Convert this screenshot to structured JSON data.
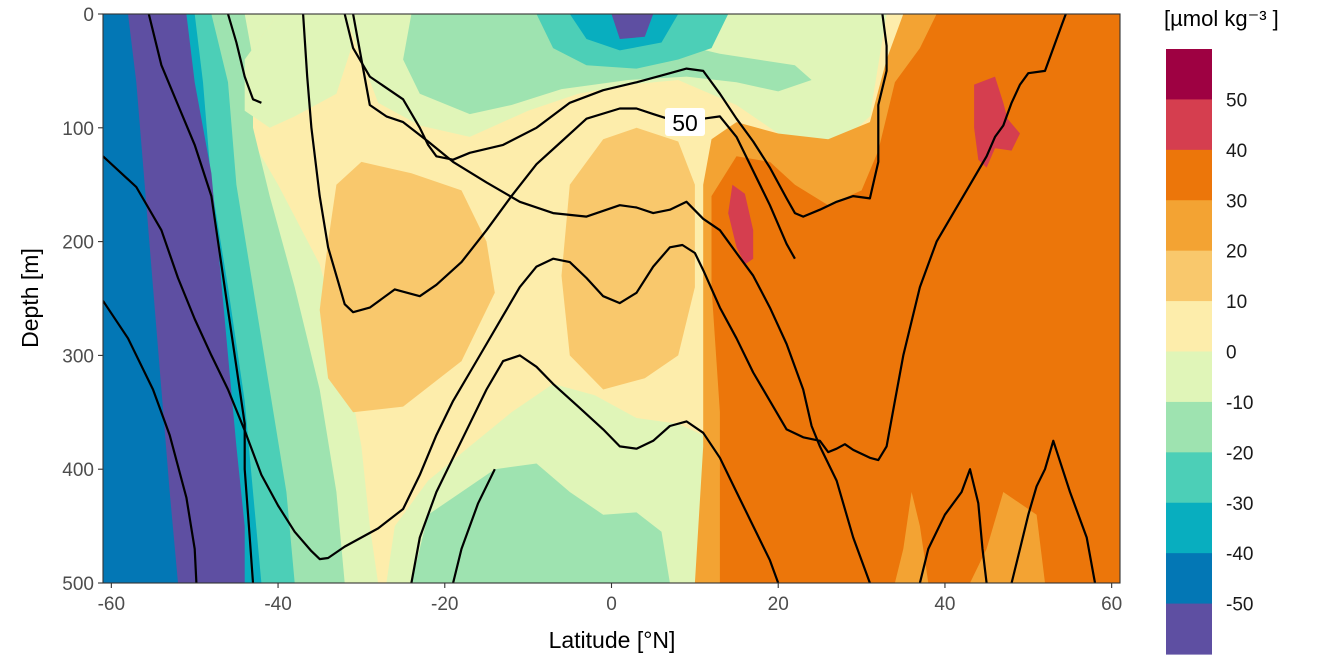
{
  "chart_data": {
    "type": "heatmap",
    "subtype": "filled-contour-section",
    "xlabel": "Latitude [°N]",
    "ylabel": "Depth [m]",
    "xlim": [
      -61,
      61
    ],
    "ylim": [
      0,
      500
    ],
    "y_reversed": true,
    "x_ticks": [
      -60,
      -40,
      -20,
      0,
      20,
      40,
      60
    ],
    "x_tick_labels": [
      "-60",
      "-40",
      "-20",
      "0",
      "20",
      "40",
      "60"
    ],
    "y_ticks": [
      0,
      100,
      200,
      300,
      400,
      500
    ],
    "y_tick_labels": [
      "0",
      "100",
      "200",
      "300",
      "400",
      "500"
    ],
    "legend": {
      "title": "[µmol kg⁻³ ]",
      "labels": [
        "50",
        "40",
        "30",
        "20",
        "10",
        "0",
        "-10",
        "-20",
        "-30",
        "-40",
        "-50"
      ],
      "colors_top_to_bottom": [
        "#9e0142",
        "#d53e4f",
        "#ec760a",
        "#f3a333",
        "#f9c86c",
        "#fdedab",
        "#e0f5b8",
        "#9ee3b0",
        "#4ccfb7",
        "#08aebf",
        "#0377b5",
        "#5e4fa2"
      ],
      "placement": "right"
    },
    "contour_line_label": "50",
    "bands": [
      {
        "name": "base",
        "color": "#fdedab"
      },
      {
        "name": "north-band-20-30",
        "color": "#f3a333"
      },
      {
        "name": "north-band-30-40",
        "color": "#ec760a"
      },
      {
        "name": "north-high-40-50",
        "color": "#d53e4f"
      },
      {
        "name": "equatorial-10-20",
        "color": "#f9c86c"
      },
      {
        "name": "upper-0-neg10",
        "color": "#e0f5b8"
      },
      {
        "name": "upper-neg10-neg20",
        "color": "#9ee3b0"
      },
      {
        "name": "deep-0-neg10",
        "color": "#e0f5b8"
      },
      {
        "name": "deep-neg10-neg20",
        "color": "#9ee3b0"
      },
      {
        "name": "south-neg10",
        "color": "#e0f5b8"
      },
      {
        "name": "south-neg20",
        "color": "#9ee3b0"
      },
      {
        "name": "south-neg30",
        "color": "#4ccfb7"
      },
      {
        "name": "south-neg40",
        "color": "#08aebf"
      },
      {
        "name": "south-neg50",
        "color": "#0377b5"
      },
      {
        "name": "south-min",
        "color": "#5e4fa2"
      }
    ],
    "contour_lines": [
      {
        "name": "isoline-1",
        "points": [
          [
            -61,
            125
          ],
          [
            -57,
            152
          ],
          [
            -54,
            190
          ],
          [
            -52,
            232
          ],
          [
            -50,
            268
          ],
          [
            -48,
            300
          ],
          [
            -46,
            330
          ],
          [
            -44,
            366
          ],
          [
            -42,
            405
          ],
          [
            -40,
            432
          ],
          [
            -38,
            455
          ],
          [
            -36,
            472
          ],
          [
            -35,
            479
          ],
          [
            -34,
            478
          ],
          [
            -32,
            468
          ],
          [
            -28,
            452
          ],
          [
            -25,
            435
          ],
          [
            -23,
            405
          ],
          [
            -21,
            370
          ],
          [
            -19,
            340
          ],
          [
            -17,
            315
          ],
          [
            -15,
            290
          ],
          [
            -13,
            265
          ],
          [
            -11,
            240
          ],
          [
            -9,
            222
          ],
          [
            -7,
            215
          ],
          [
            -5,
            218
          ],
          [
            -3,
            232
          ],
          [
            -1,
            248
          ],
          [
            1,
            254
          ],
          [
            3,
            245
          ],
          [
            5,
            222
          ],
          [
            7,
            205
          ],
          [
            8.5,
            203
          ],
          [
            10,
            210
          ],
          [
            11,
            225
          ],
          [
            13,
            258
          ],
          [
            15,
            285
          ],
          [
            17,
            315
          ],
          [
            19,
            340
          ],
          [
            21,
            365
          ],
          [
            23,
            372
          ],
          [
            25,
            375
          ],
          [
            26,
            385
          ],
          [
            27,
            382
          ],
          [
            28,
            378
          ],
          [
            29,
            383
          ],
          [
            31,
            390
          ],
          [
            32,
            392
          ],
          [
            33,
            380
          ],
          [
            34,
            340
          ],
          [
            35,
            300
          ],
          [
            36,
            270
          ],
          [
            37,
            240
          ],
          [
            39,
            200
          ],
          [
            41,
            175
          ],
          [
            43,
            150
          ],
          [
            45,
            125
          ],
          [
            46,
            108
          ],
          [
            47,
            98
          ],
          [
            48,
            78
          ],
          [
            49,
            62
          ],
          [
            50,
            52
          ],
          [
            52,
            50
          ],
          [
            53,
            30
          ],
          [
            54,
            10
          ],
          [
            54.5,
            0
          ]
        ]
      },
      {
        "name": "isoline-2",
        "points": [
          [
            -61,
            252
          ],
          [
            -58,
            285
          ],
          [
            -55,
            330
          ],
          [
            -53,
            370
          ],
          [
            -51,
            425
          ],
          [
            -50,
            470
          ],
          [
            -49.8,
            500
          ]
        ]
      },
      {
        "name": "isoline-3",
        "points": [
          [
            -55.5,
            0
          ],
          [
            -54,
            45
          ],
          [
            -52,
            80
          ],
          [
            -50,
            115
          ],
          [
            -48,
            160
          ],
          [
            -47,
            210
          ],
          [
            -46,
            260
          ],
          [
            -45,
            310
          ],
          [
            -44,
            360
          ],
          [
            -44,
            400
          ],
          [
            -43.5,
            450
          ],
          [
            -43,
            500
          ]
        ]
      },
      {
        "name": "isoline-4",
        "points": [
          [
            -46,
            0
          ],
          [
            -45,
            25
          ],
          [
            -44,
            55
          ],
          [
            -43,
            75
          ],
          [
            -42,
            78
          ]
        ]
      },
      {
        "name": "isoline-5",
        "points": [
          [
            -32,
            0
          ],
          [
            -31,
            30
          ],
          [
            -29,
            55
          ],
          [
            -25,
            75
          ],
          [
            -23,
            100
          ],
          [
            -22,
            115
          ],
          [
            -21,
            125
          ],
          [
            -19,
            128
          ],
          [
            -17,
            122
          ],
          [
            -13,
            115
          ],
          [
            -9,
            100
          ],
          [
            -5,
            78
          ],
          [
            -1,
            67
          ],
          [
            3,
            60
          ],
          [
            7,
            52
          ],
          [
            9,
            48
          ],
          [
            11,
            50
          ],
          [
            13,
            70
          ],
          [
            15,
            92
          ],
          [
            17,
            112
          ],
          [
            19,
            135
          ],
          [
            21,
            162
          ],
          [
            22,
            175
          ],
          [
            23,
            178
          ],
          [
            25,
            172
          ],
          [
            27,
            165
          ],
          [
            29,
            160
          ],
          [
            31,
            162
          ],
          [
            32,
            130
          ],
          [
            32,
            80
          ],
          [
            33,
            50
          ],
          [
            33,
            28
          ],
          [
            32.5,
            0
          ]
        ]
      },
      {
        "name": "isoline-6",
        "points": [
          [
            -37,
            0
          ],
          [
            -36.5,
            55
          ],
          [
            -36,
            100
          ],
          [
            -35,
            160
          ],
          [
            -34,
            205
          ],
          [
            -33,
            230
          ],
          [
            -32,
            255
          ],
          [
            -31,
            262
          ],
          [
            -29,
            258
          ],
          [
            -26,
            242
          ],
          [
            -23,
            248
          ],
          [
            -21,
            238
          ],
          [
            -18,
            218
          ],
          [
            -15,
            190
          ],
          [
            -12,
            160
          ],
          [
            -9,
            132
          ],
          [
            -6,
            112
          ],
          [
            -3,
            92
          ],
          [
            1,
            83
          ],
          [
            3,
            83
          ],
          [
            5,
            88
          ],
          [
            8,
            95
          ],
          [
            11,
            92
          ],
          [
            13,
            90
          ],
          [
            15,
            108
          ],
          [
            17,
            138
          ],
          [
            19,
            168
          ],
          [
            21,
            202
          ],
          [
            22,
            215
          ]
        ]
      },
      {
        "name": "isoline-7",
        "points": [
          [
            -31,
            0
          ],
          [
            -29,
            80
          ],
          [
            -27,
            90
          ],
          [
            -25,
            95
          ],
          [
            -22,
            112
          ],
          [
            -19,
            130
          ],
          [
            -15,
            148
          ],
          [
            -11,
            165
          ],
          [
            -7,
            175
          ],
          [
            -3,
            178
          ],
          [
            1,
            168
          ],
          [
            3,
            170
          ],
          [
            5,
            175
          ],
          [
            7,
            172
          ],
          [
            9,
            165
          ],
          [
            11,
            180
          ],
          [
            13,
            190
          ],
          [
            15,
            210
          ],
          [
            17,
            230
          ],
          [
            19,
            258
          ],
          [
            21,
            290
          ],
          [
            23,
            330
          ],
          [
            24,
            362
          ],
          [
            25,
            380
          ],
          [
            27,
            410
          ],
          [
            29,
            460
          ],
          [
            31,
            500
          ]
        ]
      },
      {
        "name": "isoline-8",
        "points": [
          [
            -24,
            500
          ],
          [
            -23,
            460
          ],
          [
            -21,
            420
          ],
          [
            -19,
            390
          ],
          [
            -17,
            360
          ],
          [
            -15,
            330
          ],
          [
            -13,
            305
          ],
          [
            -11,
            300
          ],
          [
            -9,
            310
          ],
          [
            -7,
            325
          ],
          [
            -4,
            345
          ],
          [
            -1,
            365
          ],
          [
            1,
            380
          ],
          [
            3,
            382
          ],
          [
            5,
            375
          ],
          [
            7,
            362
          ],
          [
            9,
            358
          ],
          [
            11,
            368
          ],
          [
            13,
            390
          ],
          [
            15,
            420
          ],
          [
            17,
            450
          ],
          [
            19,
            480
          ],
          [
            20,
            500
          ]
        ]
      },
      {
        "name": "isoline-9",
        "points": [
          [
            -19,
            500
          ],
          [
            -18,
            470
          ],
          [
            -16,
            430
          ],
          [
            -14,
            400
          ]
        ]
      },
      {
        "name": "isoline-10",
        "points": [
          [
            37,
            500
          ],
          [
            38,
            470
          ],
          [
            40,
            440
          ],
          [
            42,
            420
          ],
          [
            43,
            400
          ],
          [
            44,
            430
          ],
          [
            44.5,
            470
          ],
          [
            45,
            500
          ]
        ]
      },
      {
        "name": "isoline-11",
        "points": [
          [
            48,
            500
          ],
          [
            49,
            470
          ],
          [
            50,
            440
          ],
          [
            51,
            415
          ],
          [
            52,
            400
          ],
          [
            53,
            375
          ],
          [
            55,
            420
          ],
          [
            57,
            460
          ],
          [
            58,
            500
          ]
        ]
      }
    ]
  }
}
